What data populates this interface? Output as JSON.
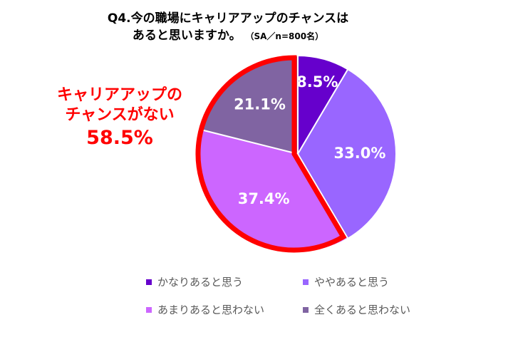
{
  "title": {
    "line1": "Q4.今の職場にキャリアアップのチャンスは",
    "line2": "あると思いますか。",
    "note": "（SA／n=800名）"
  },
  "callout": {
    "line1": "キャリアアップの",
    "line2": "チャンスがない",
    "percent": "58.5%"
  },
  "chart_data": {
    "type": "pie",
    "title": "Q4.今の職場にキャリアアップのチャンスはあると思いますか。",
    "categories": [
      "かなりあると思う",
      "ややあると思う",
      "あまりあると思わない",
      "全くあると思わない"
    ],
    "values": [
      8.5,
      33.0,
      37.4,
      21.1
    ],
    "labels": [
      "8.5%",
      "33.0%",
      "37.4%",
      "21.1%"
    ],
    "colors": [
      "#6600cc",
      "#9966ff",
      "#cc66ff",
      "#8064a2"
    ],
    "highlight": {
      "indices": [
        2,
        3
      ],
      "outline_color": "#ff0000"
    },
    "legend_position": "bottom"
  }
}
